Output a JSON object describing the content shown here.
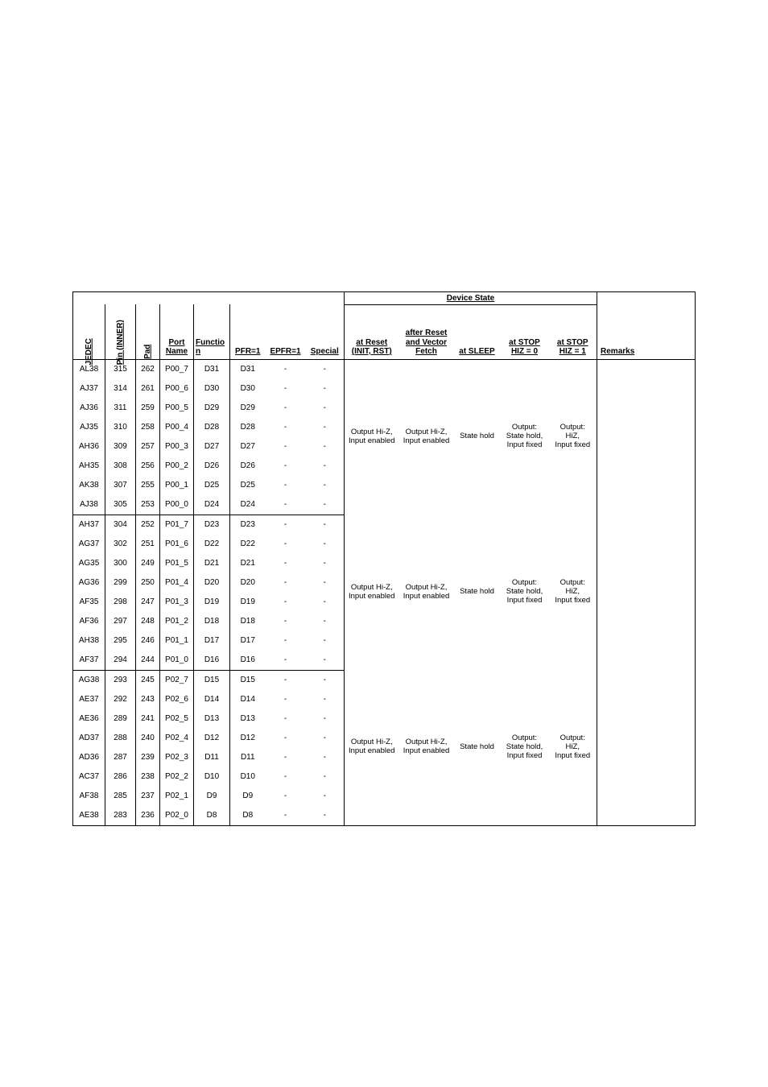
{
  "colors": {
    "background": "#ffffff",
    "text": "#000000",
    "border": "#000000"
  },
  "typography": {
    "font_family": "Arial, Helvetica, sans-serif",
    "header_fontsize_pt": 7.5,
    "body_fontsize_pt": 7.5,
    "header_weight": "bold"
  },
  "table": {
    "header": {
      "device_state": "Device State",
      "jedec": "JEDEC",
      "pin_inner": "Pin (INNER)",
      "pad": "Pad",
      "port_name": "Port Name",
      "function": "Functio\nn",
      "pfr": "PFR=1",
      "epfr": "EPFR=1",
      "special": "Special",
      "at_reset": "at Reset (INIT, RST)",
      "after_reset": "after Reset and Vector Fetch",
      "at_sleep": "at SLEEP",
      "at_stop0": "at STOP HIZ = 0",
      "at_stop1": "at STOP HIZ = 1",
      "remarks": "Remarks"
    },
    "device_state_block": {
      "at_reset": "Output Hi-Z, Input enabled",
      "after_reset": "Output Hi-Z, Input enabled",
      "at_sleep": "State hold",
      "at_stop0": "Output: State hold, Input fixed",
      "at_stop1": "Output: HiZ, Input fixed"
    },
    "groups": [
      {
        "rows": [
          {
            "jedec": "AL38",
            "pin": "315",
            "pad": "262",
            "port": "P00_7",
            "func": "D31",
            "pfr": "D31",
            "epfr": "-",
            "special": "-"
          },
          {
            "jedec": "AJ37",
            "pin": "314",
            "pad": "261",
            "port": "P00_6",
            "func": "D30",
            "pfr": "D30",
            "epfr": "-",
            "special": "-"
          },
          {
            "jedec": "AJ36",
            "pin": "311",
            "pad": "259",
            "port": "P00_5",
            "func": "D29",
            "pfr": "D29",
            "epfr": "-",
            "special": "-"
          },
          {
            "jedec": "AJ35",
            "pin": "310",
            "pad": "258",
            "port": "P00_4",
            "func": "D28",
            "pfr": "D28",
            "epfr": "-",
            "special": "-"
          },
          {
            "jedec": "AH36",
            "pin": "309",
            "pad": "257",
            "port": "P00_3",
            "func": "D27",
            "pfr": "D27",
            "epfr": "-",
            "special": "-"
          },
          {
            "jedec": "AH35",
            "pin": "308",
            "pad": "256",
            "port": "P00_2",
            "func": "D26",
            "pfr": "D26",
            "epfr": "-",
            "special": "-"
          },
          {
            "jedec": "AK38",
            "pin": "307",
            "pad": "255",
            "port": "P00_1",
            "func": "D25",
            "pfr": "D25",
            "epfr": "-",
            "special": "-"
          },
          {
            "jedec": "AJ38",
            "pin": "305",
            "pad": "253",
            "port": "P00_0",
            "func": "D24",
            "pfr": "D24",
            "epfr": "-",
            "special": "-"
          }
        ]
      },
      {
        "rows": [
          {
            "jedec": "AH37",
            "pin": "304",
            "pad": "252",
            "port": "P01_7",
            "func": "D23",
            "pfr": "D23",
            "epfr": "-",
            "special": "-"
          },
          {
            "jedec": "AG37",
            "pin": "302",
            "pad": "251",
            "port": "P01_6",
            "func": "D22",
            "pfr": "D22",
            "epfr": "-",
            "special": "-"
          },
          {
            "jedec": "AG35",
            "pin": "300",
            "pad": "249",
            "port": "P01_5",
            "func": "D21",
            "pfr": "D21",
            "epfr": "-",
            "special": "-"
          },
          {
            "jedec": "AG36",
            "pin": "299",
            "pad": "250",
            "port": "P01_4",
            "func": "D20",
            "pfr": "D20",
            "epfr": "-",
            "special": "-"
          },
          {
            "jedec": "AF35",
            "pin": "298",
            "pad": "247",
            "port": "P01_3",
            "func": "D19",
            "pfr": "D19",
            "epfr": "-",
            "special": "-"
          },
          {
            "jedec": "AF36",
            "pin": "297",
            "pad": "248",
            "port": "P01_2",
            "func": "D18",
            "pfr": "D18",
            "epfr": "-",
            "special": "-"
          },
          {
            "jedec": "AH38",
            "pin": "295",
            "pad": "246",
            "port": "P01_1",
            "func": "D17",
            "pfr": "D17",
            "epfr": "-",
            "special": "-"
          },
          {
            "jedec": "AF37",
            "pin": "294",
            "pad": "244",
            "port": "P01_0",
            "func": "D16",
            "pfr": "D16",
            "epfr": "-",
            "special": "-"
          }
        ]
      },
      {
        "rows": [
          {
            "jedec": "AG38",
            "pin": "293",
            "pad": "245",
            "port": "P02_7",
            "func": "D15",
            "pfr": "D15",
            "epfr": "-",
            "special": "-"
          },
          {
            "jedec": "AE37",
            "pin": "292",
            "pad": "243",
            "port": "P02_6",
            "func": "D14",
            "pfr": "D14",
            "epfr": "-",
            "special": "-"
          },
          {
            "jedec": "AE36",
            "pin": "289",
            "pad": "241",
            "port": "P02_5",
            "func": "D13",
            "pfr": "D13",
            "epfr": "-",
            "special": "-"
          },
          {
            "jedec": "AD37",
            "pin": "288",
            "pad": "240",
            "port": "P02_4",
            "func": "D12",
            "pfr": "D12",
            "epfr": "-",
            "special": "-"
          },
          {
            "jedec": "AD36",
            "pin": "287",
            "pad": "239",
            "port": "P02_3",
            "func": "D11",
            "pfr": "D11",
            "epfr": "-",
            "special": "-"
          },
          {
            "jedec": "AC37",
            "pin": "286",
            "pad": "238",
            "port": "P02_2",
            "func": "D10",
            "pfr": "D10",
            "epfr": "-",
            "special": "-"
          },
          {
            "jedec": "AF38",
            "pin": "285",
            "pad": "237",
            "port": "P02_1",
            "func": "D9",
            "pfr": "D9",
            "epfr": "-",
            "special": "-"
          },
          {
            "jedec": "AE38",
            "pin": "283",
            "pad": "236",
            "port": "P02_0",
            "func": "D8",
            "pfr": "D8",
            "epfr": "-",
            "special": "-"
          }
        ]
      }
    ]
  }
}
